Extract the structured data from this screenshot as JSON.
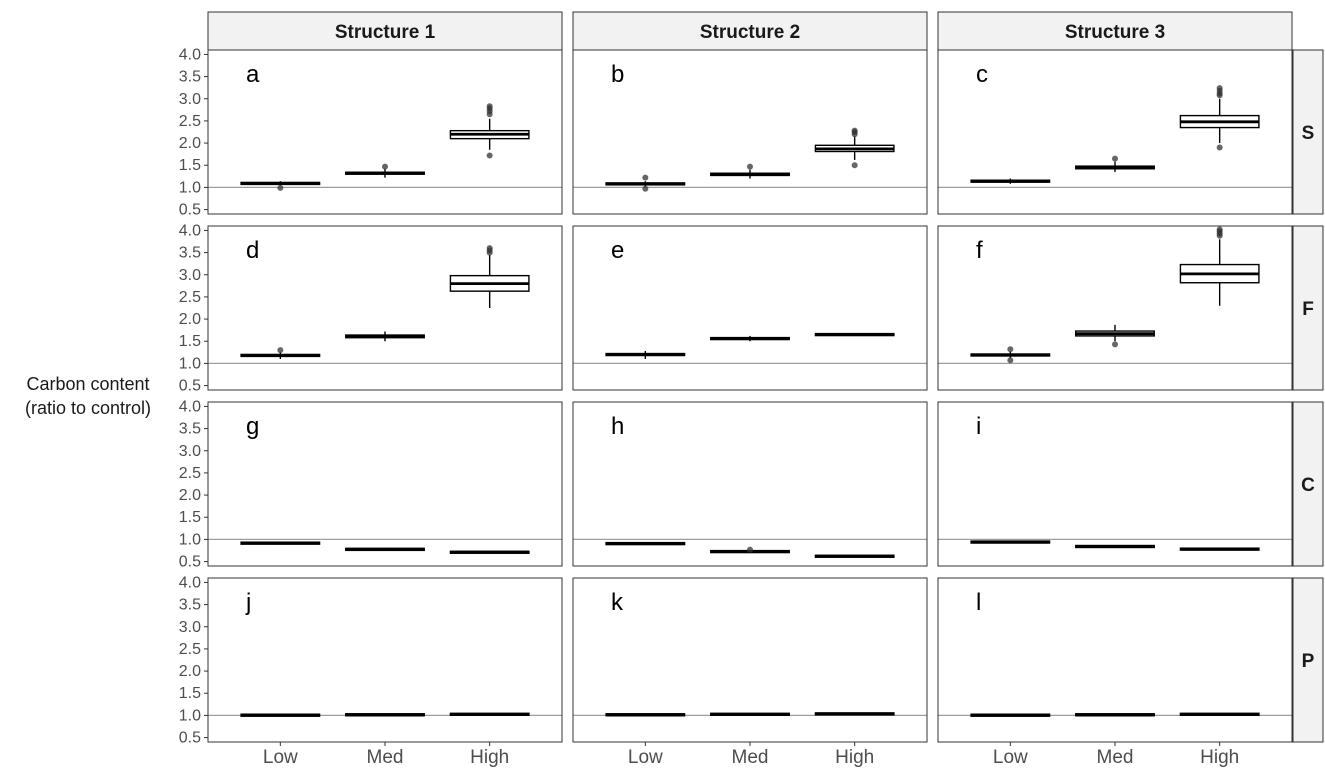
{
  "chart_data": {
    "type": "boxplot",
    "ylabel_lines": [
      "Carbon content",
      "(ratio to control)"
    ],
    "ylim": [
      0.4,
      4.1
    ],
    "yticks": [
      "0.5",
      "1.0",
      "1.5",
      "2.0",
      "2.5",
      "3.0",
      "3.5",
      "4.0"
    ],
    "reference_line": 1.0,
    "columns": [
      "Structure 1",
      "Structure 2",
      "Structure 3"
    ],
    "rows": [
      "S",
      "F",
      "C",
      "P"
    ],
    "categories": [
      "Low",
      "Med",
      "High"
    ],
    "panels": [
      {
        "label": "a",
        "row": "S",
        "column": "Structure 1",
        "boxes": [
          {
            "category": "Low",
            "q1": 1.07,
            "median": 1.09,
            "q3": 1.11,
            "whisker_low": 1.04,
            "whisker_high": 1.14,
            "outliers": [
              0.99
            ]
          },
          {
            "category": "Med",
            "q1": 1.3,
            "median": 1.32,
            "q3": 1.34,
            "whisker_low": 1.22,
            "whisker_high": 1.42,
            "outliers": [
              1.47
            ]
          },
          {
            "category": "High",
            "q1": 2.1,
            "median": 2.2,
            "q3": 2.28,
            "whisker_low": 1.85,
            "whisker_high": 2.55,
            "outliers": [
              1.72,
              2.65,
              2.72,
              2.78,
              2.83
            ]
          }
        ]
      },
      {
        "label": "b",
        "row": "S",
        "column": "Structure 2",
        "boxes": [
          {
            "category": "Low",
            "q1": 1.06,
            "median": 1.08,
            "q3": 1.1,
            "whisker_low": 1.02,
            "whisker_high": 1.14,
            "outliers": [
              0.97,
              1.22
            ]
          },
          {
            "category": "Med",
            "q1": 1.27,
            "median": 1.29,
            "q3": 1.32,
            "whisker_low": 1.2,
            "whisker_high": 1.4,
            "outliers": [
              1.47
            ]
          },
          {
            "category": "High",
            "q1": 1.81,
            "median": 1.87,
            "q3": 1.95,
            "whisker_low": 1.62,
            "whisker_high": 2.15,
            "outliers": [
              1.5,
              2.2,
              2.25,
              2.28
            ]
          }
        ]
      },
      {
        "label": "c",
        "row": "S",
        "column": "Structure 3",
        "boxes": [
          {
            "category": "Low",
            "q1": 1.12,
            "median": 1.14,
            "q3": 1.16,
            "whisker_low": 1.08,
            "whisker_high": 1.2,
            "outliers": []
          },
          {
            "category": "Med",
            "q1": 1.42,
            "median": 1.45,
            "q3": 1.48,
            "whisker_low": 1.35,
            "whisker_high": 1.58,
            "outliers": [
              1.65
            ]
          },
          {
            "category": "High",
            "q1": 2.35,
            "median": 2.48,
            "q3": 2.62,
            "whisker_low": 2.0,
            "whisker_high": 3.0,
            "outliers": [
              1.9,
              3.08,
              3.12,
              3.18,
              3.24
            ]
          }
        ]
      },
      {
        "label": "d",
        "row": "F",
        "column": "Structure 1",
        "boxes": [
          {
            "category": "Low",
            "q1": 1.16,
            "median": 1.18,
            "q3": 1.2,
            "whisker_low": 1.1,
            "whisker_high": 1.25,
            "outliers": [
              1.3
            ]
          },
          {
            "category": "Med",
            "q1": 1.58,
            "median": 1.61,
            "q3": 1.64,
            "whisker_low": 1.5,
            "whisker_high": 1.72,
            "outliers": []
          },
          {
            "category": "High",
            "q1": 2.63,
            "median": 2.8,
            "q3": 2.98,
            "whisker_low": 2.25,
            "whisker_high": 3.45,
            "outliers": [
              3.5,
              3.55,
              3.6
            ]
          }
        ]
      },
      {
        "label": "e",
        "row": "F",
        "column": "Structure 2",
        "boxes": [
          {
            "category": "Low",
            "q1": 1.18,
            "median": 1.2,
            "q3": 1.22,
            "whisker_low": 1.1,
            "whisker_high": 1.28,
            "outliers": []
          },
          {
            "category": "Med",
            "q1": 1.54,
            "median": 1.56,
            "q3": 1.58,
            "whisker_low": 1.5,
            "whisker_high": 1.62,
            "outliers": []
          },
          {
            "category": "High",
            "q1": 1.64,
            "median": 1.65,
            "q3": 1.66,
            "whisker_low": 1.62,
            "whisker_high": 1.68,
            "outliers": []
          }
        ]
      },
      {
        "label": "f",
        "row": "F",
        "column": "Structure 3",
        "boxes": [
          {
            "category": "Low",
            "q1": 1.17,
            "median": 1.19,
            "q3": 1.21,
            "whisker_low": 1.12,
            "whisker_high": 1.27,
            "outliers": [
              1.07,
              1.32
            ]
          },
          {
            "category": "Med",
            "q1": 1.62,
            "median": 1.67,
            "q3": 1.73,
            "whisker_low": 1.5,
            "whisker_high": 1.87,
            "outliers": [
              1.43
            ]
          },
          {
            "category": "High",
            "q1": 2.82,
            "median": 3.02,
            "q3": 3.23,
            "whisker_low": 2.3,
            "whisker_high": 3.8,
            "outliers": [
              3.88,
              3.93,
              3.98,
              4.02
            ]
          }
        ]
      },
      {
        "label": "g",
        "row": "C",
        "column": "Structure 1",
        "boxes": [
          {
            "category": "Low",
            "q1": 0.9,
            "median": 0.92,
            "q3": 0.93,
            "whisker_low": 0.88,
            "whisker_high": 0.95,
            "outliers": []
          },
          {
            "category": "Med",
            "q1": 0.76,
            "median": 0.78,
            "q3": 0.79,
            "whisker_low": 0.74,
            "whisker_high": 0.81,
            "outliers": []
          },
          {
            "category": "High",
            "q1": 0.7,
            "median": 0.71,
            "q3": 0.72,
            "whisker_low": 0.69,
            "whisker_high": 0.73,
            "outliers": []
          }
        ]
      },
      {
        "label": "h",
        "row": "C",
        "column": "Structure 2",
        "boxes": [
          {
            "category": "Low",
            "q1": 0.89,
            "median": 0.91,
            "q3": 0.92,
            "whisker_low": 0.87,
            "whisker_high": 0.94,
            "outliers": []
          },
          {
            "category": "Med",
            "q1": 0.71,
            "median": 0.73,
            "q3": 0.74,
            "whisker_low": 0.69,
            "whisker_high": 0.76,
            "outliers": [
              0.77
            ]
          },
          {
            "category": "High",
            "q1": 0.61,
            "median": 0.62,
            "q3": 0.63,
            "whisker_low": 0.6,
            "whisker_high": 0.64,
            "outliers": []
          }
        ]
      },
      {
        "label": "i",
        "row": "C",
        "column": "Structure 3",
        "boxes": [
          {
            "category": "Low",
            "q1": 0.93,
            "median": 0.94,
            "q3": 0.95,
            "whisker_low": 0.92,
            "whisker_high": 0.96,
            "outliers": []
          },
          {
            "category": "Med",
            "q1": 0.83,
            "median": 0.84,
            "q3": 0.85,
            "whisker_low": 0.82,
            "whisker_high": 0.86,
            "outliers": []
          },
          {
            "category": "High",
            "q1": 0.77,
            "median": 0.78,
            "q3": 0.79,
            "whisker_low": 0.76,
            "whisker_high": 0.8,
            "outliers": []
          }
        ]
      },
      {
        "label": "j",
        "row": "P",
        "column": "Structure 1",
        "boxes": [
          {
            "category": "Low",
            "q1": 1.0,
            "median": 1.0,
            "q3": 1.01,
            "whisker_low": 0.99,
            "whisker_high": 1.01,
            "outliers": []
          },
          {
            "category": "Med",
            "q1": 1.01,
            "median": 1.01,
            "q3": 1.02,
            "whisker_low": 1.0,
            "whisker_high": 1.02,
            "outliers": []
          },
          {
            "category": "High",
            "q1": 1.02,
            "median": 1.02,
            "q3": 1.03,
            "whisker_low": 1.01,
            "whisker_high": 1.03,
            "outliers": []
          }
        ]
      },
      {
        "label": "k",
        "row": "P",
        "column": "Structure 2",
        "boxes": [
          {
            "category": "Low",
            "q1": 1.01,
            "median": 1.01,
            "q3": 1.02,
            "whisker_low": 1.0,
            "whisker_high": 1.02,
            "outliers": []
          },
          {
            "category": "Med",
            "q1": 1.02,
            "median": 1.02,
            "q3": 1.03,
            "whisker_low": 1.01,
            "whisker_high": 1.03,
            "outliers": []
          },
          {
            "category": "High",
            "q1": 1.03,
            "median": 1.03,
            "q3": 1.04,
            "whisker_low": 1.02,
            "whisker_high": 1.04,
            "outliers": []
          }
        ]
      },
      {
        "label": "l",
        "row": "P",
        "column": "Structure 3",
        "boxes": [
          {
            "category": "Low",
            "q1": 1.0,
            "median": 1.0,
            "q3": 1.01,
            "whisker_low": 0.99,
            "whisker_high": 1.01,
            "outliers": []
          },
          {
            "category": "Med",
            "q1": 1.01,
            "median": 1.01,
            "q3": 1.02,
            "whisker_low": 1.0,
            "whisker_high": 1.02,
            "outliers": []
          },
          {
            "category": "High",
            "q1": 1.02,
            "median": 1.02,
            "q3": 1.03,
            "whisker_low": 1.01,
            "whisker_high": 1.03,
            "outliers": []
          }
        ]
      }
    ]
  }
}
